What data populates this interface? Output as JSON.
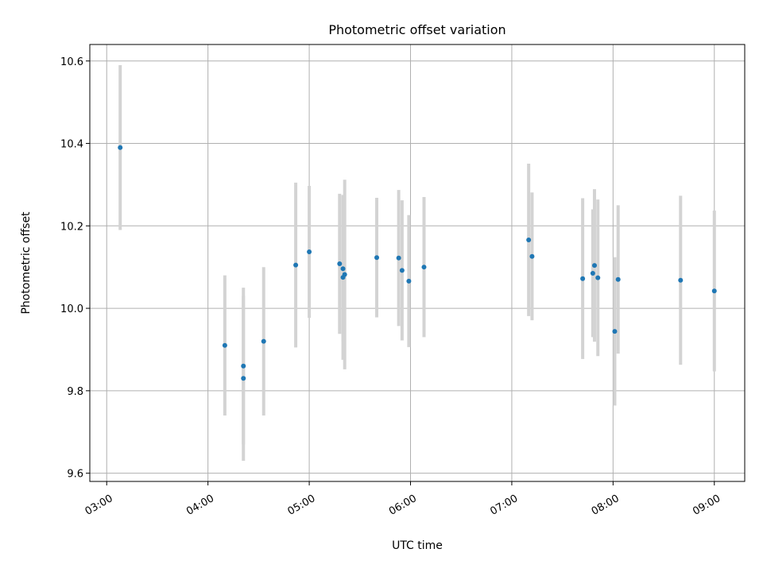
{
  "chart_data": {
    "type": "scatter",
    "title": "Photometric offset variation",
    "xlabel": "UTC time",
    "ylabel": "Photometric offset",
    "x_tick_labels": [
      "03:00",
      "04:00",
      "05:00",
      "06:00",
      "07:00",
      "08:00",
      "09:00"
    ],
    "x_tick_values": [
      180,
      240,
      300,
      360,
      420,
      480,
      540
    ],
    "y_tick_labels": [
      "9.6",
      "9.8",
      "10.0",
      "10.2",
      "10.4",
      "10.6"
    ],
    "y_tick_values": [
      9.6,
      9.8,
      10.0,
      10.2,
      10.4,
      10.6
    ],
    "xlim": [
      170,
      558
    ],
    "ylim": [
      9.58,
      10.64
    ],
    "grid": true,
    "marker_color": "#1f77b4",
    "errorbar_color": "#d3d3d3",
    "series": [
      {
        "points": [
          {
            "x": "03:08",
            "y": 10.39,
            "yerr": 0.2
          },
          {
            "x": "04:10",
            "y": 9.91,
            "yerr": 0.17
          },
          {
            "x": "04:21",
            "y": 9.86,
            "yerr": 0.19
          },
          {
            "x": "04:21",
            "y": 9.83,
            "yerr": 0.2
          },
          {
            "x": "04:33",
            "y": 9.92,
            "yerr": 0.18
          },
          {
            "x": "04:52",
            "y": 10.105,
            "yerr": 0.2
          },
          {
            "x": "05:00",
            "y": 10.137,
            "yerr": 0.16
          },
          {
            "x": "05:18",
            "y": 10.108,
            "yerr": 0.17
          },
          {
            "x": "05:20",
            "y": 10.096,
            "yerr": 0.175
          },
          {
            "x": "05:20",
            "y": 10.075,
            "yerr": 0.2
          },
          {
            "x": "05:21",
            "y": 10.082,
            "yerr": 0.23
          },
          {
            "x": "05:40",
            "y": 10.123,
            "yerr": 0.145
          },
          {
            "x": "05:53",
            "y": 10.122,
            "yerr": 0.165
          },
          {
            "x": "05:55",
            "y": 10.092,
            "yerr": 0.17
          },
          {
            "x": "05:59",
            "y": 10.066,
            "yerr": 0.16
          },
          {
            "x": "06:08",
            "y": 10.1,
            "yerr": 0.17
          },
          {
            "x": "07:10",
            "y": 10.166,
            "yerr": 0.185
          },
          {
            "x": "07:12",
            "y": 10.126,
            "yerr": 0.155
          },
          {
            "x": "07:42",
            "y": 10.072,
            "yerr": 0.195
          },
          {
            "x": "07:48",
            "y": 10.085,
            "yerr": 0.155
          },
          {
            "x": "07:49",
            "y": 10.104,
            "yerr": 0.185
          },
          {
            "x": "07:51",
            "y": 10.074,
            "yerr": 0.19
          },
          {
            "x": "08:01",
            "y": 9.944,
            "yerr": 0.18
          },
          {
            "x": "08:03",
            "y": 10.07,
            "yerr": 0.18
          },
          {
            "x": "08:40",
            "y": 10.068,
            "yerr": 0.205
          },
          {
            "x": "09:00",
            "y": 10.042,
            "yerr": 0.195
          }
        ]
      }
    ]
  }
}
